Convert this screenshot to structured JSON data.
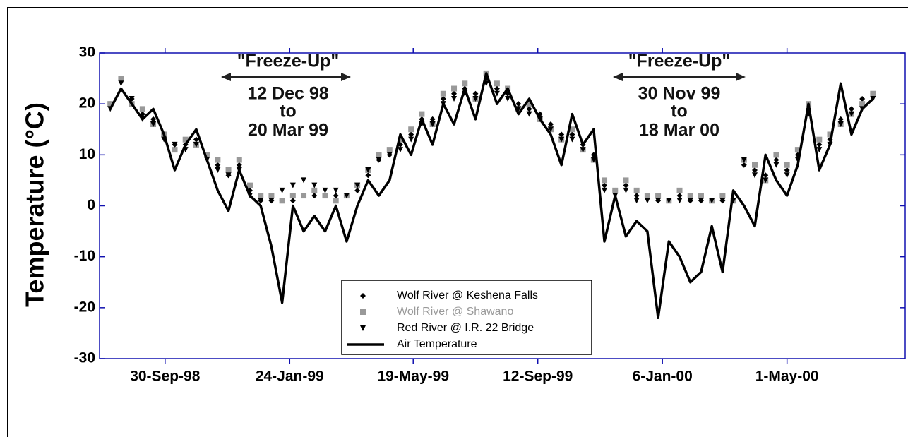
{
  "chart_data": {
    "type": "line",
    "y_label": "Temperature (°C)",
    "x": [
      "1998-08-10",
      "1998-08-20",
      "1998-08-30",
      "1998-09-09",
      "1998-09-19",
      "1998-09-29",
      "1998-10-09",
      "1998-10-19",
      "1998-10-29",
      "1998-11-08",
      "1998-11-18",
      "1998-11-28",
      "1998-12-08",
      "1998-12-18",
      "1998-12-28",
      "1999-01-07",
      "1999-01-17",
      "1999-01-27",
      "1999-02-06",
      "1999-02-16",
      "1999-02-26",
      "1999-03-08",
      "1999-03-18",
      "1999-03-28",
      "1999-04-07",
      "1999-04-17",
      "1999-04-27",
      "1999-05-07",
      "1999-05-17",
      "1999-05-27",
      "1999-06-06",
      "1999-06-16",
      "1999-06-26",
      "1999-07-06",
      "1999-07-16",
      "1999-07-26",
      "1999-08-05",
      "1999-08-15",
      "1999-08-25",
      "1999-09-04",
      "1999-09-14",
      "1999-09-24",
      "1999-10-04",
      "1999-10-14",
      "1999-10-24",
      "1999-11-03",
      "1999-11-13",
      "1999-11-23",
      "1999-12-03",
      "1999-12-13",
      "1999-12-23",
      "2000-01-02",
      "2000-01-12",
      "2000-01-22",
      "2000-02-01",
      "2000-02-11",
      "2000-02-21",
      "2000-03-02",
      "2000-03-12",
      "2000-03-22",
      "2000-04-01",
      "2000-04-11",
      "2000-04-21",
      "2000-05-01",
      "2000-05-11",
      "2000-05-21",
      "2000-05-31",
      "2000-06-10",
      "2000-06-20",
      "2000-06-30",
      "2000-07-10",
      "2000-07-20"
    ],
    "series": [
      {
        "name": "Wolf River @ Keshena Falls",
        "style": "diamond",
        "color": "#000000",
        "values": [
          20,
          25,
          21,
          18,
          17,
          14,
          12,
          12,
          13,
          10,
          8,
          6,
          8,
          3,
          1,
          1,
          1,
          1,
          2,
          2,
          2,
          2,
          2,
          3,
          6,
          9,
          10,
          12,
          14,
          17,
          17,
          21,
          22,
          23,
          22,
          25,
          23,
          22,
          20,
          19,
          18,
          16,
          14,
          14,
          12,
          10,
          4,
          3,
          4,
          2,
          2,
          1,
          1,
          2,
          1,
          1,
          1,
          1,
          1,
          8,
          7,
          6,
          9,
          7,
          10,
          19,
          12,
          13,
          17,
          19,
          21,
          22
        ]
      },
      {
        "name": "Wolf River @ Shawano",
        "style": "square",
        "color": "#999999",
        "values": [
          20,
          25,
          20,
          19,
          16,
          14,
          11,
          13,
          12,
          10,
          9,
          7,
          9,
          4,
          2,
          2,
          1,
          2,
          2,
          3,
          2,
          1,
          2,
          4,
          7,
          10,
          11,
          13,
          15,
          18,
          16,
          22,
          23,
          24,
          21,
          26,
          24,
          23,
          19,
          20,
          17,
          15,
          13,
          15,
          11,
          9,
          5,
          3,
          5,
          3,
          2,
          2,
          1,
          3,
          2,
          2,
          1,
          2,
          1,
          9,
          8,
          5,
          10,
          8,
          11,
          20,
          13,
          14,
          16,
          18,
          20,
          22
        ]
      },
      {
        "name": "Red River @ I.R. 22 Bridge",
        "style": "triangle",
        "color": "#000000",
        "values": [
          19,
          24,
          21,
          17,
          16,
          13,
          12,
          11,
          12,
          9,
          7,
          6,
          7,
          2,
          1,
          1,
          3,
          4,
          5,
          4,
          3,
          3,
          2,
          4,
          7,
          9,
          10,
          11,
          13,
          16,
          16,
          20,
          21,
          22,
          21,
          24,
          22,
          21,
          19,
          18,
          17,
          15,
          13,
          13,
          11,
          9,
          3,
          2,
          3,
          1,
          1,
          1,
          1,
          1,
          1,
          1,
          1,
          1,
          1,
          9,
          6,
          5,
          8,
          6,
          9,
          18,
          11,
          12,
          16,
          18,
          19,
          21
        ]
      },
      {
        "name": "Air Temperature",
        "style": "line",
        "color": "#000000",
        "values": [
          19,
          23,
          20,
          17,
          19,
          14,
          7,
          12,
          15,
          9,
          3,
          -1,
          7,
          2,
          0,
          -8,
          -19,
          0,
          -5,
          -2,
          -5,
          0,
          -7,
          0,
          5,
          2,
          5,
          14,
          10,
          17,
          12,
          20,
          16,
          23,
          17,
          26,
          20,
          23,
          18,
          21,
          17,
          14,
          8,
          18,
          12,
          15,
          -7,
          2,
          -6,
          -3,
          -5,
          -22,
          -7,
          -10,
          -15,
          -13,
          -4,
          -13,
          3,
          0,
          -4,
          10,
          5,
          2,
          8,
          20,
          7,
          12,
          24,
          14,
          19,
          21
        ]
      }
    ],
    "xlim": [
      "1998-07-31",
      "2000-08-19"
    ],
    "xticks": [
      {
        "value": "1998-09-30",
        "label": "30-Sep-98"
      },
      {
        "value": "1999-01-24",
        "label": "24-Jan-99"
      },
      {
        "value": "1999-05-19",
        "label": "19-May-99"
      },
      {
        "value": "1999-09-12",
        "label": "12-Sep-99"
      },
      {
        "value": "2000-01-06",
        "label": "6-Jan-00"
      },
      {
        "value": "2000-05-01",
        "label": "1-May-00"
      }
    ],
    "ylim": [
      -30,
      30
    ],
    "yticks": [
      -30,
      -20,
      -10,
      0,
      10,
      20,
      30
    ],
    "annotations": [
      {
        "lines": [
          "\"Freeze-Up\"",
          "12 Dec 98",
          "to",
          "20 Mar 99"
        ]
      },
      {
        "lines": [
          "\"Freeze-Up\"",
          "30 Nov 99",
          "to",
          "18 Mar 00"
        ]
      }
    ],
    "legend": "bottom-center"
  }
}
